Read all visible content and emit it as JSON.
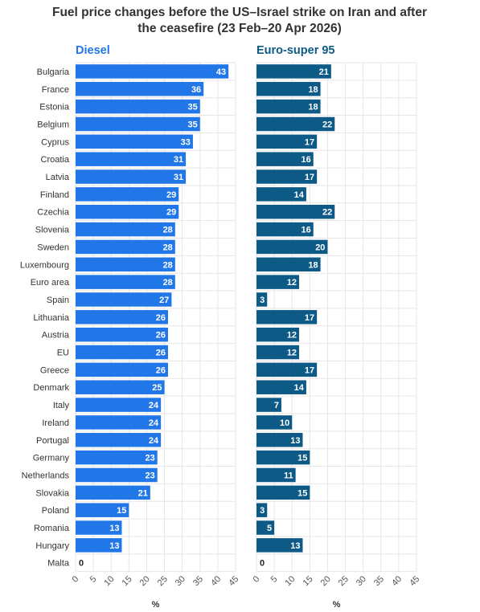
{
  "chart_data": {
    "type": "bar",
    "orientation": "horizontal",
    "title_lines": [
      "Fuel price changes before the US–Israel strike on Iran and after",
      "the ceasefire (23 Feb–20 Apr 2026)"
    ],
    "categories": [
      "Bulgaria",
      "France",
      "Estonia",
      "Belgium",
      "Cyprus",
      "Croatia",
      "Latvia",
      "Finland",
      "Czechia",
      "Slovenia",
      "Sweden",
      "Luxembourg",
      "Euro area",
      "Spain",
      "Lithuania",
      "Austria",
      "EU",
      "Greece",
      "Denmark",
      "Italy",
      "Ireland",
      "Portugal",
      "Germany",
      "Netherlands",
      "Slovakia",
      "Poland",
      "Romania",
      "Hungary",
      "Malta"
    ],
    "series": [
      {
        "name": "Diesel",
        "color": "#2176e8",
        "values": [
          43,
          36,
          35,
          35,
          33,
          31,
          31,
          29,
          29,
          28,
          28,
          28,
          28,
          27,
          26,
          26,
          26,
          26,
          25,
          24,
          24,
          24,
          23,
          23,
          21,
          15,
          13,
          13,
          0
        ]
      },
      {
        "name": "Euro-super 95",
        "color": "#0e5a87",
        "values": [
          21,
          18,
          18,
          22,
          17,
          16,
          17,
          14,
          22,
          16,
          20,
          18,
          12,
          3,
          17,
          12,
          12,
          17,
          14,
          7,
          10,
          13,
          15,
          11,
          15,
          3,
          5,
          13,
          0
        ]
      }
    ],
    "xlim": [
      0,
      45
    ],
    "xticks": [
      "0",
      "5",
      "10",
      "15",
      "20",
      "25",
      "30",
      "35",
      "40",
      "45"
    ],
    "xlabel": "%",
    "grid": true,
    "legend": "none"
  }
}
